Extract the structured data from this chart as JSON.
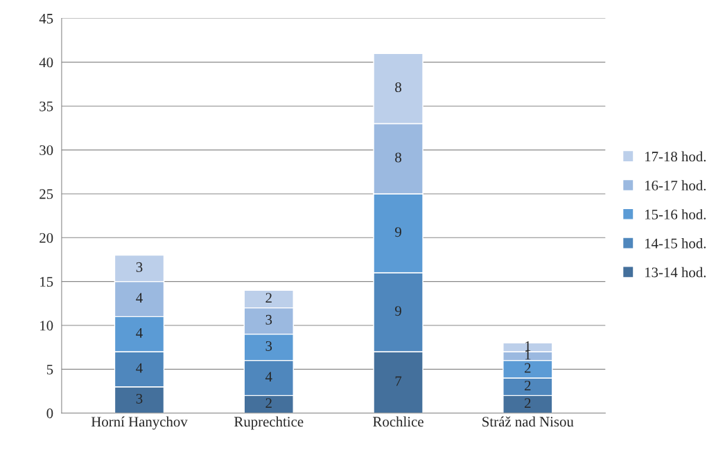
{
  "chart_data": {
    "type": "bar",
    "stacked": true,
    "categories": [
      "Horní Hanychov",
      "Ruprechtice",
      "Rochlice",
      "Stráž nad Nisou"
    ],
    "series": [
      {
        "name": "13-14 hod.",
        "color": "#44709c",
        "values": [
          3,
          2,
          7,
          2
        ]
      },
      {
        "name": "14-15 hod.",
        "color": "#4f87bd",
        "values": [
          4,
          4,
          9,
          2
        ]
      },
      {
        "name": "15-16 hod.",
        "color": "#5b9bd5",
        "values": [
          4,
          3,
          9,
          2
        ]
      },
      {
        "name": "16-17 hod.",
        "color": "#9bb9e0",
        "values": [
          4,
          3,
          8,
          1
        ]
      },
      {
        "name": "17-18 hod.",
        "color": "#bccfea",
        "values": [
          3,
          2,
          8,
          1
        ]
      }
    ],
    "ylim": [
      0,
      45
    ],
    "yticks": [
      0,
      5,
      10,
      15,
      20,
      25,
      30,
      35,
      40,
      45
    ],
    "grid": "y",
    "legend": "right",
    "data_labels": true
  }
}
